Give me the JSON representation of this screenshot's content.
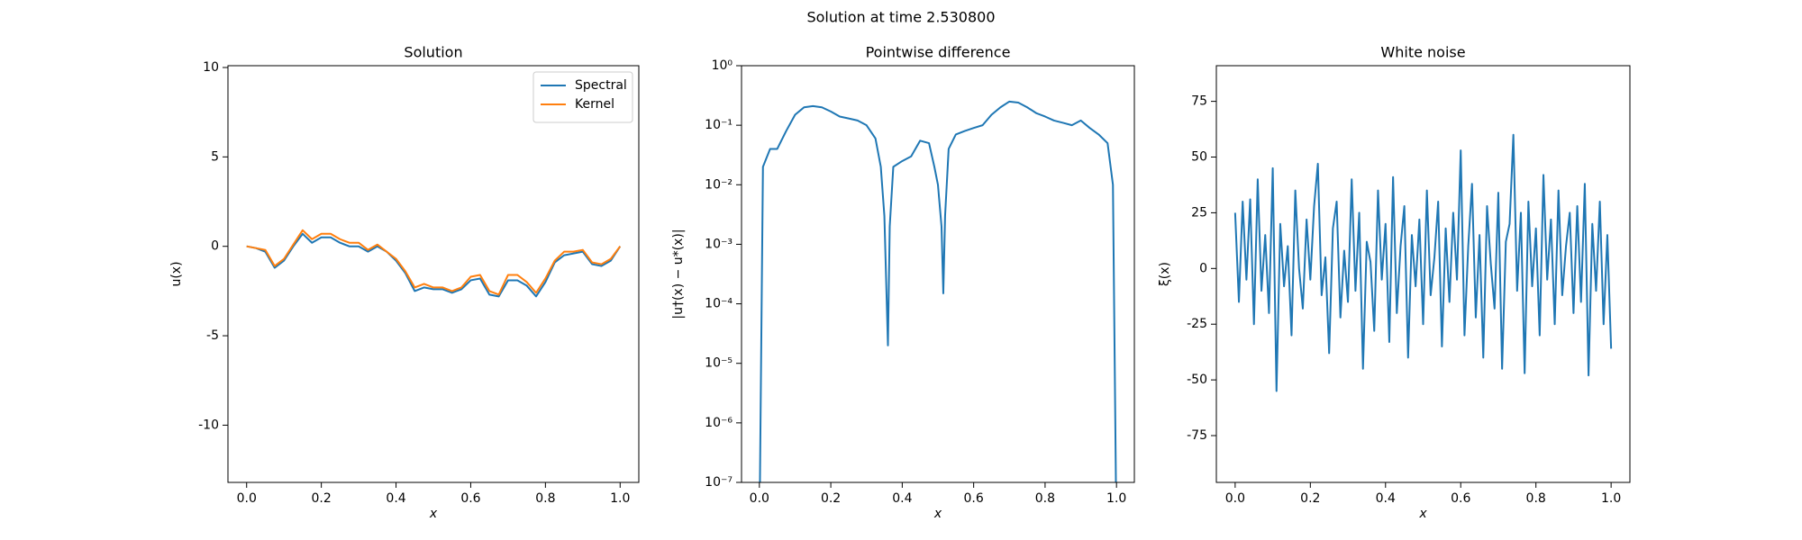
{
  "title": "Solution at time 2.530800",
  "chart_data": [
    {
      "type": "line",
      "title": "Solution",
      "xlabel": "x",
      "ylabel": "u(x)",
      "x": [
        0,
        0.025,
        0.05,
        0.075,
        0.1,
        0.125,
        0.15,
        0.175,
        0.2,
        0.225,
        0.25,
        0.275,
        0.3,
        0.325,
        0.35,
        0.375,
        0.4,
        0.425,
        0.45,
        0.475,
        0.5,
        0.525,
        0.55,
        0.575,
        0.6,
        0.625,
        0.65,
        0.675,
        0.7,
        0.725,
        0.75,
        0.775,
        0.8,
        0.825,
        0.85,
        0.875,
        0.9,
        0.925,
        0.95,
        0.975,
        1
      ],
      "series": [
        {
          "name": "Spectral",
          "color": "#1f77b4",
          "values": [
            0,
            -0.1,
            -0.3,
            -1.2,
            -0.8,
            0.0,
            0.7,
            0.2,
            0.5,
            0.5,
            0.2,
            0.0,
            0.0,
            -0.3,
            0.0,
            -0.3,
            -0.8,
            -1.5,
            -2.5,
            -2.3,
            -2.4,
            -2.4,
            -2.6,
            -2.4,
            -1.9,
            -1.8,
            -2.7,
            -2.8,
            -1.9,
            -1.9,
            -2.2,
            -2.8,
            -2.0,
            -0.9,
            -0.5,
            -0.4,
            -0.3,
            -1.0,
            -1.1,
            -0.8,
            0.0
          ]
        },
        {
          "name": "Kernel",
          "color": "#ff7f0e",
          "values": [
            0,
            -0.1,
            -0.2,
            -1.1,
            -0.7,
            0.1,
            0.9,
            0.4,
            0.7,
            0.7,
            0.4,
            0.2,
            0.2,
            -0.2,
            0.1,
            -0.3,
            -0.7,
            -1.4,
            -2.3,
            -2.1,
            -2.3,
            -2.3,
            -2.5,
            -2.3,
            -1.7,
            -1.6,
            -2.5,
            -2.7,
            -1.6,
            -1.6,
            -2.0,
            -2.6,
            -1.8,
            -0.8,
            -0.3,
            -0.3,
            -0.2,
            -0.9,
            -1.0,
            -0.7,
            0.0
          ]
        }
      ],
      "xlim": [
        -0.05,
        1.05
      ],
      "ylim": [
        -13.2,
        10.1
      ],
      "xticks": [
        {
          "value": 0,
          "label": "0.0"
        },
        0.2,
        0.4,
        0.6,
        0.8,
        {
          "value": 1,
          "label": "1.0"
        }
      ],
      "yticks": [
        -10,
        -5,
        0,
        5,
        10
      ],
      "legend": "upper right"
    },
    {
      "type": "line",
      "title": "Pointwise difference",
      "xlabel": "x",
      "ylabel": "|u†(x) − u*(x)|",
      "x": [
        0,
        0.01,
        0.03,
        0.05,
        0.075,
        0.1,
        0.125,
        0.15,
        0.175,
        0.2,
        0.225,
        0.25,
        0.275,
        0.3,
        0.325,
        0.34,
        0.35,
        0.36,
        0.365,
        0.375,
        0.4,
        0.425,
        0.45,
        0.475,
        0.49,
        0.5,
        0.51,
        0.515,
        0.52,
        0.53,
        0.55,
        0.575,
        0.6,
        0.625,
        0.65,
        0.675,
        0.7,
        0.725,
        0.75,
        0.775,
        0.8,
        0.825,
        0.85,
        0.875,
        0.9,
        0.925,
        0.95,
        0.975,
        0.99,
        1
      ],
      "values": [
        1e-08,
        0.02,
        0.04,
        0.04,
        0.08,
        0.15,
        0.2,
        0.21,
        0.2,
        0.17,
        0.14,
        0.13,
        0.12,
        0.1,
        0.06,
        0.02,
        0.003,
        2e-05,
        0.002,
        0.02,
        0.025,
        0.03,
        0.055,
        0.05,
        0.02,
        0.01,
        0.002,
        0.00015,
        0.003,
        0.04,
        0.07,
        0.08,
        0.09,
        0.1,
        0.15,
        0.2,
        0.25,
        0.24,
        0.2,
        0.16,
        0.14,
        0.12,
        0.11,
        0.1,
        0.12,
        0.09,
        0.07,
        0.05,
        0.01,
        1e-08
      ],
      "color": "#1f77b4",
      "log_y": true,
      "xlim": [
        -0.05,
        1.05
      ],
      "ylim": [
        1e-07,
        1
      ],
      "xticks": [
        {
          "value": 0,
          "label": "0.0"
        },
        0.2,
        0.4,
        0.6,
        0.8,
        {
          "value": 1,
          "label": "1.0"
        }
      ],
      "yticks": [
        {
          "value": 1e-07,
          "label": "10⁻⁷"
        },
        {
          "value": 1e-06,
          "label": "10⁻⁶"
        },
        {
          "value": 1e-05,
          "label": "10⁻⁵"
        },
        {
          "value": 0.0001,
          "label": "10⁻⁴"
        },
        {
          "value": 0.001,
          "label": "10⁻³"
        },
        {
          "value": 0.01,
          "label": "10⁻²"
        },
        {
          "value": 0.1,
          "label": "10⁻¹"
        },
        {
          "value": 1,
          "label": "10⁰"
        }
      ]
    },
    {
      "type": "line",
      "title": "White noise",
      "xlabel": "x",
      "ylabel": "ξ(x)",
      "x": [
        0,
        0.01,
        0.02,
        0.03,
        0.04,
        0.05,
        0.06,
        0.07,
        0.08,
        0.09,
        0.1,
        0.11,
        0.12,
        0.13,
        0.14,
        0.15,
        0.16,
        0.17,
        0.18,
        0.19,
        0.2,
        0.21,
        0.22,
        0.23,
        0.24,
        0.25,
        0.26,
        0.27,
        0.28,
        0.29,
        0.3,
        0.31,
        0.32,
        0.33,
        0.34,
        0.35,
        0.36,
        0.37,
        0.38,
        0.39,
        0.4,
        0.41,
        0.42,
        0.43,
        0.44,
        0.45,
        0.46,
        0.47,
        0.48,
        0.49,
        0.5,
        0.51,
        0.52,
        0.53,
        0.54,
        0.55,
        0.56,
        0.57,
        0.58,
        0.59,
        0.6,
        0.61,
        0.62,
        0.63,
        0.64,
        0.65,
        0.66,
        0.67,
        0.68,
        0.69,
        0.7,
        0.71,
        0.72,
        0.73,
        0.74,
        0.75,
        0.76,
        0.77,
        0.78,
        0.79,
        0.8,
        0.81,
        0.82,
        0.83,
        0.84,
        0.85,
        0.86,
        0.87,
        0.88,
        0.89,
        0.9,
        0.91,
        0.92,
        0.93,
        0.94,
        0.95,
        0.96,
        0.97,
        0.98,
        0.99,
        1
      ],
      "values": [
        25,
        -15,
        30,
        -5,
        31,
        -25,
        40,
        -10,
        15,
        -20,
        45,
        -55,
        20,
        -8,
        10,
        -30,
        35,
        0,
        -18,
        22,
        -5,
        28,
        47,
        -12,
        5,
        -38,
        18,
        30,
        -22,
        8,
        -15,
        40,
        -10,
        25,
        -45,
        12,
        3,
        -28,
        35,
        -5,
        20,
        -33,
        41,
        -20,
        10,
        28,
        -40,
        15,
        -8,
        22,
        -25,
        35,
        -12,
        5,
        30,
        -35,
        18,
        -15,
        25,
        -5,
        53,
        -30,
        10,
        38,
        -22,
        15,
        -40,
        28,
        2,
        -18,
        34,
        -45,
        12,
        20,
        60,
        -10,
        25,
        -47,
        30,
        -8,
        18,
        -30,
        42,
        -5,
        22,
        -25,
        35,
        -12,
        10,
        25,
        -20,
        28,
        -15,
        38,
        -48,
        20,
        -10,
        30,
        -25,
        15,
        -36
      ],
      "color": "#1f77b4",
      "xlim": [
        -0.05,
        1.05
      ],
      "ylim": [
        -96,
        91
      ],
      "xticks": [
        {
          "value": 0,
          "label": "0.0"
        },
        0.2,
        0.4,
        0.6,
        0.8,
        {
          "value": 1,
          "label": "1.0"
        }
      ],
      "yticks": [
        -75,
        -50,
        -25,
        0,
        25,
        50,
        75
      ]
    }
  ]
}
